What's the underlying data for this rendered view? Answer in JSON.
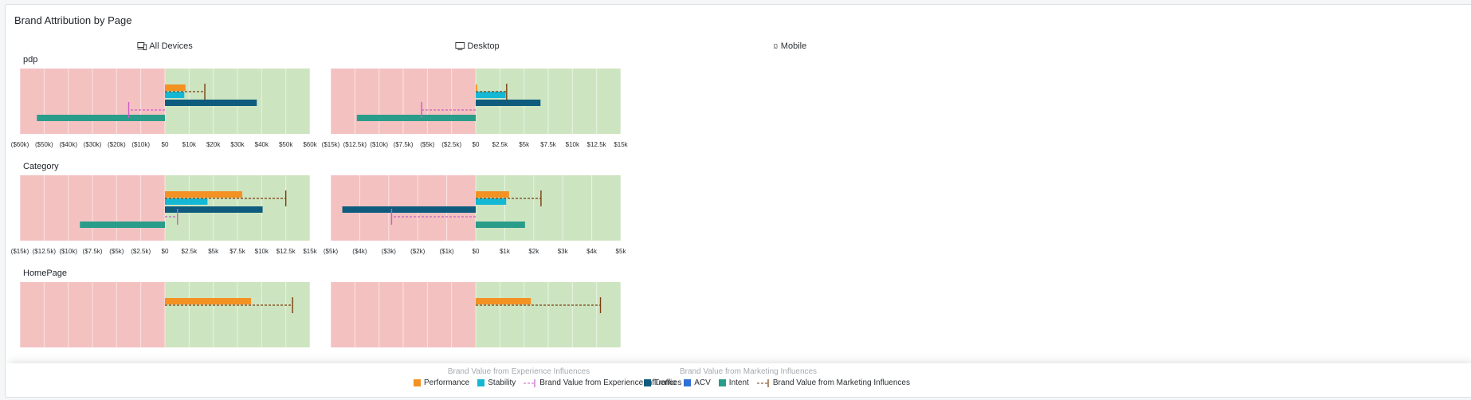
{
  "page": {
    "title": "Brand Attribution by Page"
  },
  "devices": [
    {
      "label": "All Devices",
      "icon": "devices-icon"
    },
    {
      "label": "Desktop",
      "icon": "desktop-icon"
    },
    {
      "label": "Mobile",
      "icon": "mobile-icon"
    }
  ],
  "rows": [
    {
      "label": "pdp"
    },
    {
      "label": "Category"
    },
    {
      "label": "HomePage"
    }
  ],
  "colors": {
    "negative_bg": "#f4c1c1",
    "positive_bg": "#cde4c1",
    "performance": "#f39223",
    "stability": "#14b8d4",
    "traffic": "#0e5b7e",
    "acv": "#2f6fd6",
    "intent": "#2a9d8a",
    "exp_line": "#cc5cc8",
    "mkt_line": "#7a3e0c"
  },
  "legend": {
    "experience_title": "Brand Value from Experience Influences",
    "marketing_title": "Brand Value from Marketing Influences",
    "performance": "Performance",
    "stability": "Stability",
    "exp_total": "Brand Value from Experience Influences",
    "traffic": "Traffic",
    "acv": "ACV",
    "intent": "Intent",
    "mkt_total": "Brand Value from Marketing Influences"
  },
  "chart_data": [
    {
      "type": "bar",
      "row": "pdp",
      "device": "All Devices",
      "xlim": [
        -60000,
        60000
      ],
      "ticks": [
        "($60k)",
        "($50k)",
        "($40k)",
        "($30k)",
        "($20k)",
        "($10k)",
        "$0",
        "$10k",
        "$20k",
        "$30k",
        "$40k",
        "$50k",
        "$60k"
      ],
      "performance": 8500,
      "stability": 8000,
      "traffic": 38000,
      "intent": -53000,
      "experience_total": -15000,
      "marketing_total": 16500
    },
    {
      "type": "bar",
      "row": "pdp",
      "device": "Desktop",
      "xlim": [
        -15000,
        15000
      ],
      "ticks": [
        "($15k)",
        "($12.5k)",
        "($10k)",
        "($7.5k)",
        "($5k)",
        "($2.5k)",
        "$0",
        "$2.5k",
        "$5k",
        "$7.5k",
        "$10k",
        "$12.5k",
        "$15k"
      ],
      "performance": 150,
      "stability": 3100,
      "traffic": 6700,
      "intent": -12300,
      "experience_total": -5600,
      "marketing_total": 3200
    },
    {
      "type": "bar",
      "row": "Category",
      "device": "All Devices",
      "xlim": [
        -15000,
        15000
      ],
      "ticks": [
        "($15k)",
        "($12.5k)",
        "($10k)",
        "($7.5k)",
        "($5k)",
        "($2.5k)",
        "$0",
        "$2.5k",
        "$5k",
        "$7.5k",
        "$10k",
        "$12.5k",
        "$15k"
      ],
      "performance": 8000,
      "stability": 4400,
      "traffic": 10100,
      "intent": -8800,
      "experience_total": 1300,
      "marketing_total": 12500
    },
    {
      "type": "bar",
      "row": "Category",
      "device": "Desktop",
      "xlim": [
        -5000,
        5000
      ],
      "ticks": [
        "($5k)",
        "($4k)",
        "($3k)",
        "($2k)",
        "($1k)",
        "$0",
        "$1k",
        "$2k",
        "$3k",
        "$4k",
        "$5k"
      ],
      "performance": 1150,
      "stability": 1050,
      "traffic": -4600,
      "intent": 1700,
      "experience_total": -2900,
      "marketing_total": 2250
    },
    {
      "type": "bar",
      "row": "HomePage",
      "device": "All Devices",
      "xlim": [
        -15000,
        15000
      ],
      "ticks": [],
      "performance": 8900,
      "marketing_total": 13200
    },
    {
      "type": "bar",
      "row": "HomePage",
      "device": "Desktop",
      "xlim": [
        -5000,
        5000
      ],
      "ticks": [],
      "performance": 1900,
      "marketing_total": 4300
    }
  ]
}
